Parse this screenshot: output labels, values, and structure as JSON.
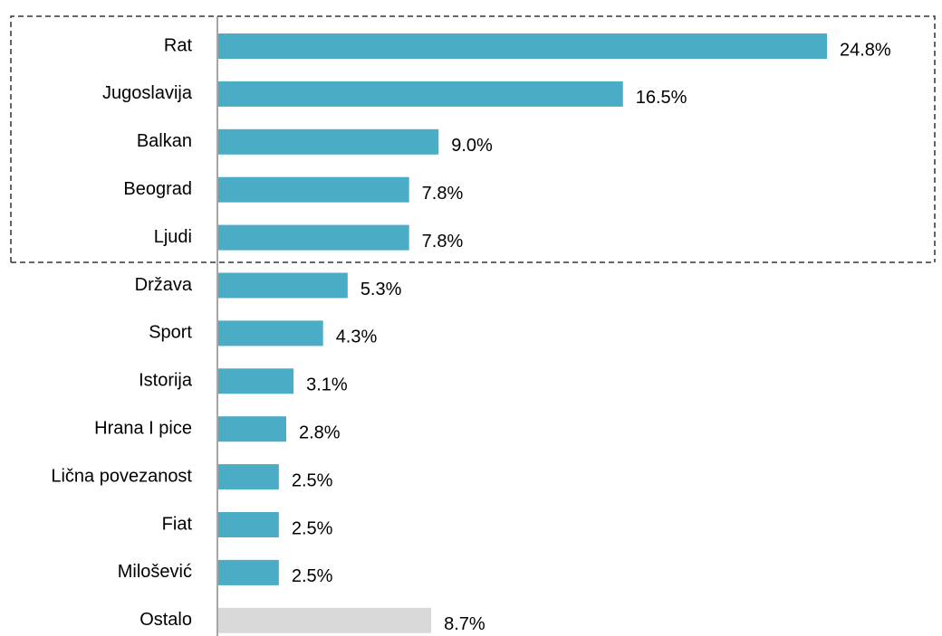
{
  "chart_data": {
    "type": "bar",
    "orientation": "horizontal",
    "categories": [
      "Rat",
      "Jugoslavija",
      "Balkan",
      "Beograd",
      "Ljudi",
      "Država",
      "Sport",
      "Istorija",
      "Hrana I pice",
      "Lična povezanost",
      "Fiat",
      "Milošević",
      "Ostalo"
    ],
    "values": [
      24.8,
      16.5,
      9.0,
      7.8,
      7.8,
      5.3,
      4.3,
      3.1,
      2.8,
      2.5,
      2.5,
      2.5,
      8.7
    ],
    "value_labels": [
      "24.8%",
      "16.5%",
      "9.0%",
      "7.8%",
      "7.8%",
      "5.3%",
      "4.3%",
      "3.1%",
      "2.8%",
      "2.5%",
      "2.5%",
      "2.5%",
      "8.7%"
    ],
    "colors": [
      "#4bacc6",
      "#4bacc6",
      "#4bacc6",
      "#4bacc6",
      "#4bacc6",
      "#4bacc6",
      "#4bacc6",
      "#4bacc6",
      "#4bacc6",
      "#4bacc6",
      "#4bacc6",
      "#4bacc6",
      "#d9d9d9"
    ]
  }
}
